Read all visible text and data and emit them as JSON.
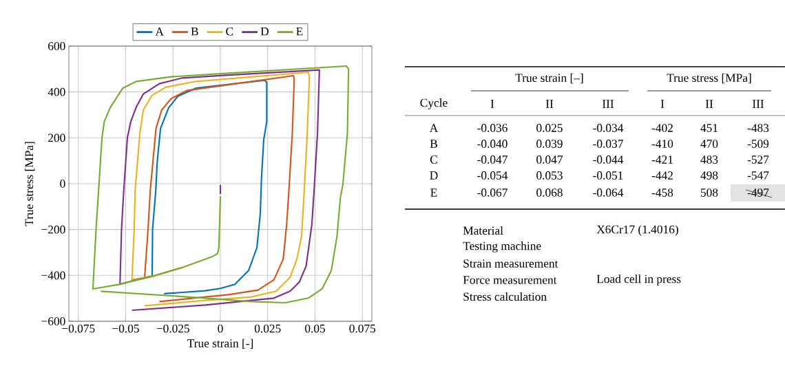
{
  "chart_data": [
    {
      "type": "line",
      "xlabel": "True strain [-]",
      "ylabel": "True stress [MPa]",
      "xlim": [
        -0.08,
        0.08
      ],
      "ylim": [
        -600,
        600
      ],
      "xticks": [
        {
          "value": -0.075,
          "label": "−0.075"
        },
        {
          "value": -0.05,
          "label": "−0.05"
        },
        {
          "value": -0.025,
          "label": "−0.025"
        },
        0,
        0.025,
        0.05,
        0.075
      ],
      "yticks": [
        {
          "value": -600,
          "label": "−600"
        },
        {
          "value": -400,
          "label": "−400"
        },
        {
          "value": -200,
          "label": "−200"
        },
        0,
        200,
        400,
        600
      ],
      "grid": true,
      "legend": "top",
      "marker": "none",
      "line_style": "solid",
      "series": [
        {
          "name": "A",
          "color": "#0072bd",
          "x": [
            -0.036,
            -0.0358,
            -0.0341,
            -0.0334,
            -0.0316,
            -0.0273,
            -0.0225,
            -0.0128,
            0.0235,
            0.0245,
            0.0245,
            0.0229,
            0.0217,
            0.0211,
            0.0193,
            0.0149,
            0.0077,
            0,
            -0.008,
            -0.0287,
            -0.0298
          ],
          "values": [
            -402,
            -199,
            -29,
            91,
            241,
            331,
            381,
            417,
            451,
            441,
            271,
            192,
            21,
            -129,
            -279,
            -379,
            -439,
            -457,
            -467,
            -479,
            -481
          ]
        },
        {
          "name": "B",
          "color": "#d95319",
          "x": [
            -0.02,
            -0.036,
            -0.04,
            -0.0382,
            -0.037,
            -0.034,
            -0.031,
            -0.026,
            -0.0178,
            0.0386,
            0.039,
            0.038,
            0.0362,
            0.035,
            0.0332,
            0.0283,
            0.0199,
            0.0041,
            -0.008,
            -0.0322
          ],
          "values": [
            -365,
            -404,
            -410,
            -199,
            -29,
            241,
            321,
            371,
            406,
            471,
            455,
            221,
            -29,
            -179,
            -329,
            -419,
            -464,
            -484,
            -494,
            -514
          ]
        },
        {
          "name": "C",
          "color": "#edb120",
          "x": [
            -0.02,
            -0.036,
            -0.0467,
            -0.0455,
            -0.045,
            -0.0425,
            -0.0407,
            -0.036,
            -0.0287,
            -0.0128,
            0.0465,
            0.047,
            0.0459,
            0.0443,
            0.0429,
            0.0404,
            0.0368,
            0.0295,
            0.0162,
            -0.008,
            -0.04
          ],
          "values": [
            -365,
            -404,
            -419,
            -199,
            -29,
            221,
            321,
            386,
            421,
            446,
            486,
            467,
            221,
            -29,
            -229,
            -329,
            -409,
            -469,
            -494,
            -509,
            -532
          ]
        },
        {
          "name": "D",
          "color": "#7e2f8e",
          "x": [
            0,
            0,
            -0.02,
            -0.036,
            -0.047,
            -0.053,
            -0.0522,
            -0.051,
            -0.0491,
            -0.0473,
            -0.0443,
            -0.0407,
            -0.0322,
            -0.0201,
            0.0029,
            0.0523,
            0.0513,
            0.0495,
            0.0483,
            0.0453,
            0.0417,
            0.0368,
            0.0283,
            0.0102,
            -0.008,
            -0.0467
          ],
          "values": [
            -5,
            -45,
            null,
            -404,
            -425,
            -439,
            -199,
            -29,
            201,
            271,
            336,
            391,
            436,
            461,
            473,
            496,
            221,
            -29,
            -179,
            -359,
            -429,
            -469,
            -499,
            -514,
            -529,
            -552
          ]
        },
        {
          "name": "E",
          "color": "#77ac30",
          "x": [
            0,
            -0.0003,
            -0.0008,
            -0.0015,
            -0.004,
            -0.02,
            -0.036,
            -0.054,
            -0.0673,
            -0.0655,
            -0.0643,
            -0.0625,
            -0.0613,
            -0.0582,
            -0.0516,
            -0.0443,
            -0.0262,
            0.0029,
            0.0665,
            0.0677,
            0.0671,
            0.0647,
            0.0634,
            0.0616,
            0.0586,
            0.0537,
            0.0465,
            0.0344,
            0.0162,
            -0.008,
            -0.0631
          ],
          "values": [
            -55,
            -150,
            -280,
            -305,
            -317,
            -365,
            -404,
            -440,
            -459,
            -179,
            -29,
            201,
            271,
            331,
            416,
            446,
            466,
            481,
            513,
            501,
            221,
            -4,
            -59,
            -229,
            -379,
            -459,
            -499,
            -519,
            -514,
            -499,
            -469
          ]
        }
      ]
    },
    {
      "type": "other",
      "annotations": [
        "True strain [–]",
        "True stress [MPa]",
        "Cycle",
        "I",
        "II",
        "III",
        "I",
        "II",
        "III",
        "A",
        "-0.036",
        "0.025",
        "-0.034",
        "-402",
        "451",
        "-483",
        "B",
        "-0.040",
        "0.039",
        "-0.037",
        "-410",
        "470",
        "-509",
        "C",
        "-0.047",
        "0.047",
        "-0.044",
        "-421",
        "483",
        "-527",
        "D",
        "-0.054",
        "0.053",
        "-0.051",
        "-442",
        "498",
        "-547",
        "E",
        "-0.067",
        "0.068",
        "-0.064",
        "-458",
        "508",
        "-497",
        "Material",
        "X6Cr17 (1.4016)",
        "Testing machine",
        "Strain measurement",
        "Force measurement",
        "Load cell in press",
        "Stress calculation"
      ]
    }
  ]
}
